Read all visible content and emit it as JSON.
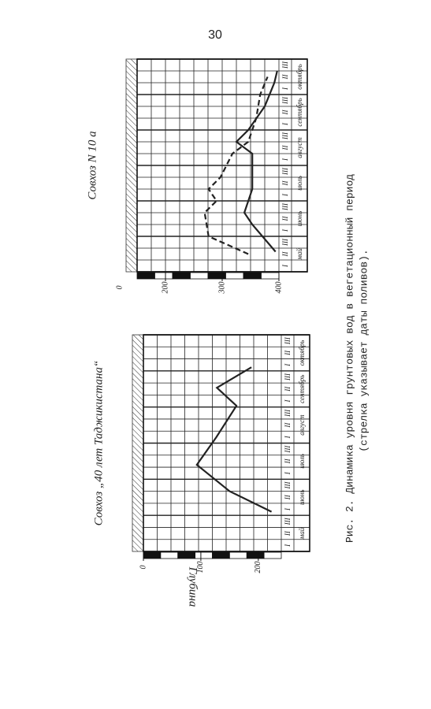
{
  "page_number": "30",
  "chart_data": [
    {
      "type": "line",
      "title": "Совхоз N 10 а",
      "categories": [
        "май",
        "июнь",
        "июль",
        "август",
        "сентябрь",
        "октябрь"
      ],
      "decades": [
        "I",
        "II",
        "III"
      ],
      "origin_label": "0",
      "xlim": [
        0,
        18
      ],
      "ylim": [
        150,
        400
      ],
      "yticks": [
        200,
        300,
        400
      ],
      "grid": true,
      "series": [
        {
          "color": "#222222",
          "dash": false,
          "x": [
            1.7,
            4,
            5,
            7,
            10,
            11,
            12,
            14,
            16,
            17
          ],
          "values": [
            394,
            353,
            339,
            353,
            353,
            325,
            346,
            375,
            392,
            397
          ]
        },
        {
          "color": "#222222",
          "dash": true,
          "x": [
            1.5,
            3,
            5,
            6,
            7,
            8,
            10,
            11,
            13,
            15,
            16.5
          ],
          "values": [
            346,
            276,
            269,
            290,
            276,
            297,
            318,
            346,
            360,
            367,
            380
          ]
        }
      ]
    },
    {
      "type": "line",
      "title": "Совхоз „40 лет Таджикистана“",
      "y_label": "Глубина",
      "categories": [
        "май",
        "июнь",
        "июль",
        "август",
        "сентябрь",
        "октябрь"
      ],
      "decades": [
        "I",
        "II",
        "III"
      ],
      "xlim": [
        0,
        18
      ],
      "ylim": [
        0,
        240
      ],
      "yticks": [
        0,
        100,
        200
      ],
      "grid": true,
      "series": [
        {
          "color": "#222222",
          "dash": false,
          "x": [
            3.3,
            5,
            7.2,
            9.5,
            12.1,
            13.6,
            15.3
          ],
          "values": [
            223,
            150,
            93,
            127,
            162,
            128,
            188
          ]
        }
      ]
    }
  ],
  "caption": {
    "line1": "Рис. 2. Динамика уровня грунтовых вод в вегетационный период",
    "line2": "(стрелка указывает даты поливов)."
  }
}
